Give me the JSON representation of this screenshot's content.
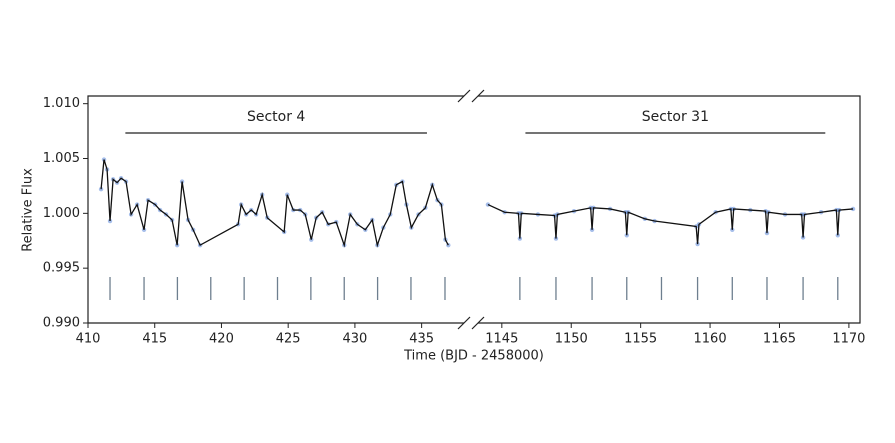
{
  "chart_data": {
    "type": "line",
    "xlabel": "Time (BJD - 2458000)",
    "ylabel": "Relative Flux",
    "ylim": [
      0.99,
      1.0107
    ],
    "yticks": [
      {
        "value": 0.99,
        "label": "0.990"
      },
      {
        "value": 0.995,
        "label": "0.995"
      },
      {
        "value": 1.0,
        "label": "1.000"
      },
      {
        "value": 1.005,
        "label": "1.005"
      },
      {
        "value": 1.01,
        "label": "1.010"
      }
    ],
    "panels": [
      {
        "xlim": [
          410,
          437.8
        ],
        "xticks": [
          410,
          415,
          420,
          425,
          430,
          435
        ],
        "annotation": {
          "text": "Sector 4",
          "span": [
            412.8,
            435.4
          ]
        },
        "series": [
          {
            "color": "#111111",
            "point_color": "#3a6fd0",
            "x": [
              410.98,
              411.2,
              411.43,
              411.65,
              411.88,
              412.18,
              412.48,
              412.85,
              413.23,
              413.68,
              414.2,
              414.5,
              415.03,
              415.4,
              415.85,
              416.3,
              416.68,
              417.05,
              417.5,
              417.88,
              418.4,
              421.25,
              421.48,
              421.85,
              422.23,
              422.6,
              423.05,
              423.43,
              424.7,
              424.93,
              425.38,
              425.9,
              426.28,
              426.73,
              427.1,
              427.55,
              428.0,
              428.6,
              429.2,
              429.65,
              430.18,
              430.78,
              431.3,
              431.68,
              432.13,
              432.65,
              433.1,
              433.56,
              433.86,
              434.23,
              434.76,
              435.28,
              435.8,
              436.18,
              436.48,
              436.78,
              437.0
            ],
            "values": [
              1.0022,
              1.0049,
              1.004,
              0.9993,
              1.0031,
              1.0028,
              1.0032,
              1.0029,
              0.9999,
              1.0008,
              0.9985,
              1.0012,
              1.0008,
              1.0003,
              0.9999,
              0.9994,
              0.9971,
              1.0029,
              0.9994,
              0.9985,
              0.9971,
              0.999,
              1.0008,
              0.9999,
              1.0003,
              0.9999,
              1.0017,
              0.9996,
              0.9983,
              1.0017,
              1.0003,
              1.0003,
              0.9999,
              0.9976,
              0.9996,
              1.0001,
              0.999,
              0.9992,
              0.9971,
              0.9999,
              0.999,
              0.9985,
              0.9994,
              0.9971,
              0.9987,
              0.9999,
              1.0026,
              1.0029,
              1.0008,
              0.9987,
              0.9999,
              1.0005,
              1.0026,
              1.0012,
              1.0008,
              0.9976,
              0.9971
            ]
          }
        ],
        "transits": {
          "color": "#6e7f8f",
          "x": [
            411.65,
            414.2,
            416.7,
            419.2,
            421.7,
            424.2,
            426.7,
            429.2,
            431.7,
            434.2,
            436.75
          ]
        }
      },
      {
        "xlim": [
          1143.5,
          1170.8
        ],
        "xticks": [
          1145,
          1150,
          1155,
          1160,
          1165,
          1170
        ],
        "annotation": {
          "text": "Sector 31",
          "span": [
            1146.7,
            1168.3
          ]
        },
        "series": [
          {
            "color": "#111111",
            "point_color": "#3a6fd0",
            "x": [
              1144.0,
              1145.2,
              1146.2,
              1146.3,
              1146.4,
              1147.6,
              1148.8,
              1148.9,
              1149.0,
              1150.2,
              1151.4,
              1151.5,
              1151.6,
              1152.8,
              1153.9,
              1154.0,
              1154.1,
              1155.3,
              1156.0,
              1159.0,
              1159.1,
              1159.2,
              1160.4,
              1161.5,
              1161.6,
              1161.7,
              1162.9,
              1164.0,
              1164.1,
              1164.2,
              1165.4,
              1166.6,
              1166.7,
              1166.8,
              1168.0,
              1169.1,
              1169.2,
              1169.3,
              1170.3
            ],
            "values": [
              1.0008,
              1.0001,
              1.0,
              0.9977,
              1.0,
              0.9999,
              0.9998,
              0.9977,
              0.9999,
              1.0002,
              1.0005,
              0.9985,
              1.0005,
              1.0004,
              1.0001,
              0.998,
              1.0001,
              0.9995,
              0.9993,
              0.9988,
              0.9972,
              0.999,
              1.0001,
              1.0004,
              0.9985,
              1.0004,
              1.0003,
              1.0002,
              0.9982,
              1.0001,
              0.9999,
              0.9999,
              0.9978,
              0.9999,
              1.0001,
              1.0003,
              0.998,
              1.0003,
              1.0004
            ]
          }
        ],
        "transits": {
          "color": "#6e7f8f",
          "x": [
            1146.3,
            1148.9,
            1151.5,
            1154.0,
            1156.5,
            1159.1,
            1161.6,
            1164.1,
            1166.7,
            1169.2
          ]
        }
      }
    ]
  }
}
